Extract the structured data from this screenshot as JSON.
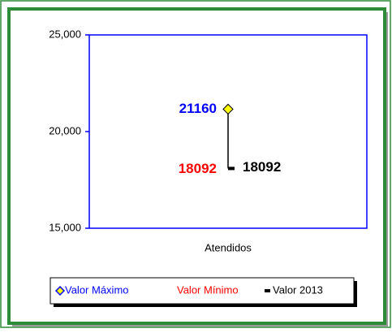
{
  "chart_data": {
    "type": "high-low",
    "categories": [
      "Atendidos"
    ],
    "series": [
      {
        "name": "Valor Máximo",
        "color": "#0000ff",
        "marker_color": "#ffff00",
        "values": [
          21160
        ]
      },
      {
        "name": "Valor Mínimo",
        "color": "#ff0000",
        "values": [
          18092
        ]
      },
      {
        "name": "Valor 2013",
        "color": "#000000",
        "values": [
          18092
        ]
      }
    ],
    "ylim": [
      15000,
      25000
    ],
    "yticks": [
      {
        "value": 15000,
        "label": "15,000"
      },
      {
        "value": 20000,
        "label": "20,000"
      },
      {
        "value": 25000,
        "label": "25,000"
      }
    ],
    "legend": "bottom"
  }
}
